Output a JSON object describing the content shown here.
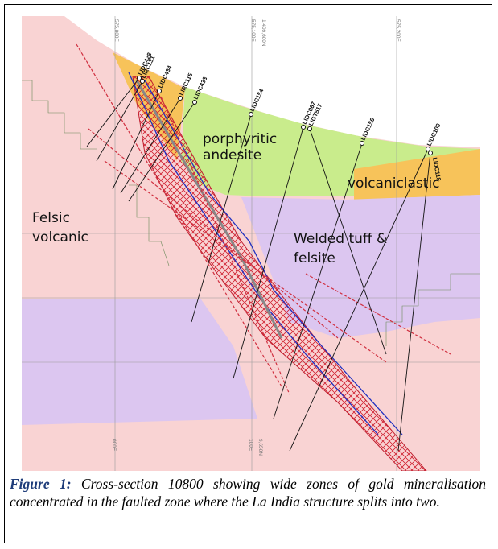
{
  "figure": {
    "grid_labels": [
      "575,000E",
      "575,100E",
      "1,409,600N",
      "575,200E",
      "000E",
      "100E",
      "9,650N"
    ],
    "drill_holes": [
      "LIDC428",
      "LIRC131",
      "LIDC434",
      "LIRC115",
      "LIDC433",
      "LIDC154",
      "LIDC067",
      "LIGT517",
      "LIDC156",
      "LIDC109",
      "LIDC118"
    ],
    "units": [
      {
        "lines": [
          "porphyritic",
          "andesite"
        ]
      },
      {
        "lines": [
          "volcaniclastic"
        ]
      },
      {
        "lines": [
          "Felsic",
          "volcanic"
        ]
      },
      {
        "lines": [
          "Welded tuff &",
          "felsite"
        ]
      }
    ],
    "caption": {
      "label": "Figure 1:",
      "text": "Cross-section 10800 showing wide zones of gold mineralisation concentrated in the faulted zone where the La India structure splits into two."
    }
  }
}
